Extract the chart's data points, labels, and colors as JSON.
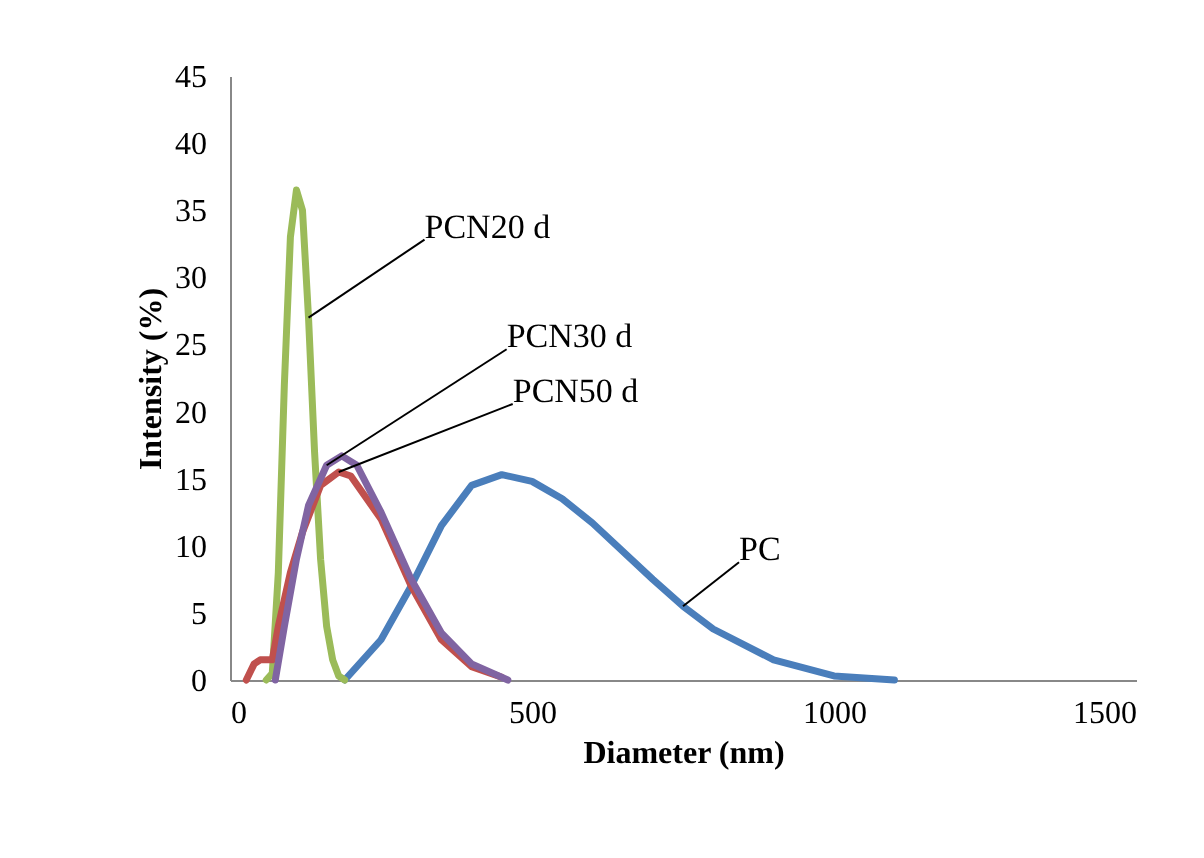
{
  "chart_data": {
    "type": "line",
    "xlabel": "Diameter (nm)",
    "ylabel": "Intensity (%)",
    "xlim": [
      0,
      1500
    ],
    "xticks": [
      0,
      500,
      1000,
      1500
    ],
    "ylim": [
      0,
      45
    ],
    "yticks": [
      0,
      5,
      10,
      15,
      20,
      25,
      30,
      35,
      40,
      45
    ],
    "grid": false,
    "marker": "none",
    "line_style": "solid",
    "series": [
      {
        "name": "PC",
        "color": "#4a7ebb",
        "x": [
          190,
          250,
          300,
          350,
          400,
          450,
          500,
          550,
          600,
          700,
          750,
          800,
          900,
          1000,
          1100
        ],
        "values": [
          0,
          3,
          7,
          11.5,
          14.5,
          15.3,
          14.8,
          13.5,
          11.7,
          7.5,
          5.5,
          3.8,
          1.5,
          0.3,
          0
        ]
      },
      {
        "name": "PCN20 d",
        "color": "#9bbb59",
        "x": [
          60,
          70,
          80,
          90,
          100,
          110,
          120,
          130,
          140,
          150,
          160,
          170,
          180,
          190
        ],
        "values": [
          0,
          0.5,
          8,
          22,
          33,
          36.5,
          35,
          27,
          17,
          9,
          4,
          1.5,
          0.3,
          0
        ]
      },
      {
        "name": "PCN50 d",
        "color": "#c0504d",
        "x": [
          27,
          40,
          50,
          70,
          80,
          100,
          120,
          150,
          180,
          200,
          250,
          300,
          350,
          400,
          450
        ],
        "values": [
          0,
          1.2,
          1.5,
          1.5,
          4,
          8,
          11,
          14.5,
          15.5,
          15.2,
          12,
          7,
          3,
          1,
          0.2
        ]
      },
      {
        "name": "PCN30 d",
        "color": "#8064a2",
        "x": [
          75,
          90,
          110,
          130,
          160,
          185,
          210,
          250,
          300,
          350,
          400,
          460
        ],
        "values": [
          0,
          4,
          9,
          13,
          16,
          16.7,
          16,
          12.5,
          7.5,
          3.5,
          1.2,
          0
        ]
      }
    ]
  }
}
